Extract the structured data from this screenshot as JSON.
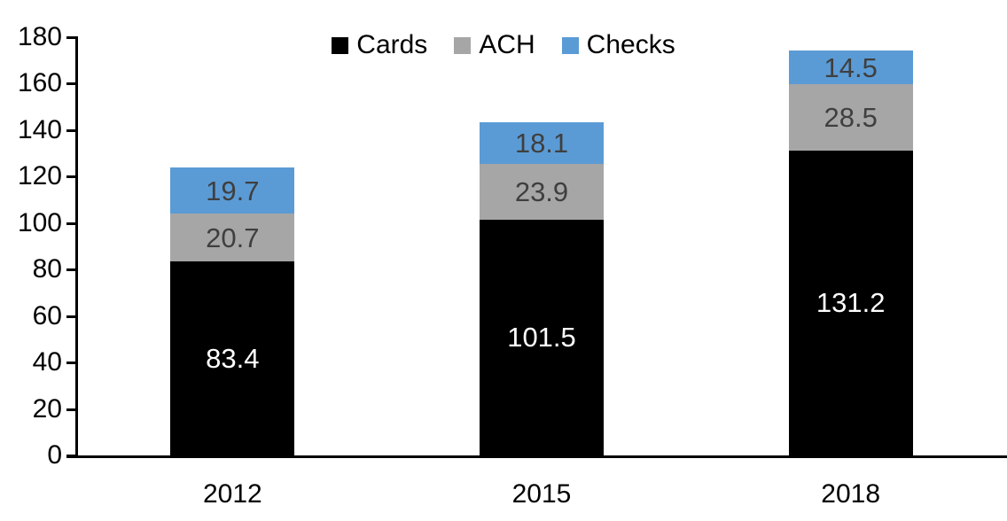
{
  "chart_data": {
    "type": "bar",
    "stacked": true,
    "title": "",
    "xlabel": "",
    "ylabel": "",
    "categories": [
      "2012",
      "2015",
      "2018"
    ],
    "series": [
      {
        "name": "Cards",
        "color": "#000000",
        "label_color": "#FFFFFF",
        "values": [
          83.4,
          101.5,
          131.2
        ]
      },
      {
        "name": "ACH",
        "color": "#A6A6A6",
        "label_color": "#3F3F3F",
        "values": [
          20.7,
          23.9,
          28.5
        ]
      },
      {
        "name": "Checks",
        "color": "#5B9BD5",
        "label_color": "#3F3F3F",
        "values": [
          19.7,
          18.1,
          14.5
        ]
      }
    ],
    "legend": {
      "position": "top-center",
      "entries": [
        "Cards",
        "ACH",
        "Checks"
      ]
    },
    "ylim": [
      0,
      180
    ],
    "yticks": [
      0,
      20,
      40,
      60,
      80,
      100,
      120,
      140,
      160,
      180
    ],
    "grid": false,
    "axis_color": "#000000",
    "text_color": "#000000",
    "background": "#FFFFFF"
  }
}
